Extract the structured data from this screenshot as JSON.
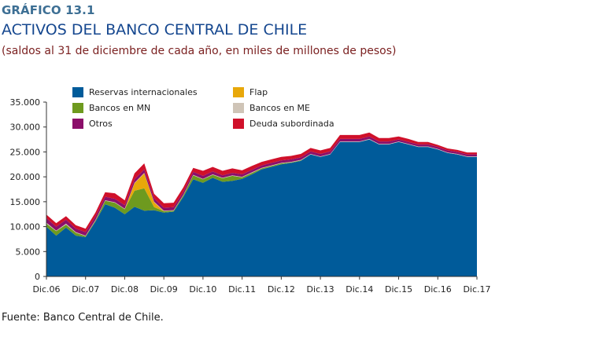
{
  "header": {
    "tag": "GRÁFICO 13.1",
    "title": "ACTIVOS DEL BANCO CENTRAL DE CHILE",
    "subtitle": "(saldos al 31 de diciembre de cada año, en miles de millones de pesos)"
  },
  "source": "Fuente: Banco Central de Chile.",
  "chart_data": {
    "type": "area",
    "stacked": true,
    "title": "ACTIVOS DEL BANCO CENTRAL DE CHILE",
    "xlabel": "",
    "ylabel": "",
    "ylim": [
      0,
      35000
    ],
    "yticks": [
      0,
      5000,
      10000,
      15000,
      20000,
      25000,
      30000,
      35000
    ],
    "ytick_labels": [
      "0",
      "5.000",
      "10.000",
      "15.000",
      "20.000",
      "25.000",
      "30.000",
      "35.000"
    ],
    "xtick_labels": [
      "Dic.06",
      "Dic.07",
      "Dic.08",
      "Dic.09",
      "Dic.10",
      "Dic.11",
      "Dic.12",
      "Dic.13",
      "Dic.14",
      "Dic.15",
      "Dic.16",
      "Dic.17"
    ],
    "x": [
      2006.0,
      2006.25,
      2006.5,
      2006.75,
      2007.0,
      2007.25,
      2007.5,
      2007.75,
      2008.0,
      2008.25,
      2008.5,
      2008.75,
      2009.0,
      2009.25,
      2009.5,
      2009.75,
      2010.0,
      2010.25,
      2010.5,
      2010.75,
      2011.0,
      2011.25,
      2011.5,
      2011.75,
      2012.0,
      2012.25,
      2012.5,
      2012.75,
      2013.0,
      2013.25,
      2013.5,
      2013.75,
      2014.0,
      2014.25,
      2014.5,
      2014.75,
      2015.0,
      2015.25,
      2015.5,
      2015.75,
      2016.0,
      2016.25,
      2016.5,
      2016.75,
      2017.0
    ],
    "legend_position": "top",
    "grid": false,
    "series": [
      {
        "name": "Reservas internacionales",
        "color": "#005b9a",
        "values": [
          10000,
          8200,
          9800,
          8200,
          7900,
          11000,
          14500,
          13800,
          12500,
          14000,
          13200,
          13300,
          12800,
          13000,
          16000,
          19500,
          18800,
          19800,
          19000,
          19200,
          19600,
          20500,
          21500,
          22000,
          22500,
          22800,
          23200,
          24500,
          24000,
          24500,
          27000,
          27000,
          27000,
          27500,
          26500,
          26500,
          27000,
          26500,
          26000,
          26000,
          25500,
          24800,
          24500,
          24000,
          24000
        ]
      },
      {
        "name": "Bancos en MN",
        "color": "#6e9a1f",
        "values": [
          600,
          900,
          600,
          600,
          200,
          200,
          700,
          1000,
          1000,
          3200,
          4500,
          600,
          300,
          200,
          300,
          800,
          700,
          600,
          700,
          1000,
          300,
          300,
          200,
          200,
          200,
          100,
          100,
          0,
          0,
          0,
          0,
          0,
          0,
          0,
          0,
          0,
          0,
          0,
          0,
          0,
          0,
          0,
          0,
          0,
          0
        ]
      },
      {
        "name": "Flap",
        "color": "#e8a80a",
        "values": [
          0,
          0,
          0,
          0,
          0,
          0,
          0,
          0,
          0,
          1500,
          3000,
          1000,
          0,
          0,
          0,
          0,
          0,
          0,
          0,
          0,
          0,
          0,
          0,
          0,
          0,
          0,
          0,
          0,
          0,
          0,
          0,
          0,
          0,
          0,
          0,
          0,
          0,
          0,
          0,
          0,
          0,
          0,
          0,
          0,
          0
        ]
      },
      {
        "name": "Bancos en ME",
        "color": "#cfc4b7",
        "values": [
          200,
          100,
          200,
          100,
          100,
          100,
          100,
          100,
          100,
          100,
          100,
          100,
          100,
          100,
          100,
          100,
          100,
          100,
          100,
          100,
          100,
          100,
          100,
          100,
          100,
          100,
          100,
          100,
          100,
          100,
          100,
          100,
          100,
          100,
          100,
          100,
          100,
          100,
          100,
          100,
          100,
          100,
          100,
          100,
          100
        ]
      },
      {
        "name": "Otros",
        "color": "#8b0f6a",
        "values": [
          900,
          800,
          800,
          700,
          700,
          700,
          700,
          700,
          700,
          700,
          700,
          700,
          600,
          600,
          600,
          600,
          600,
          600,
          500,
          500,
          500,
          500,
          500,
          500,
          500,
          500,
          500,
          500,
          500,
          500,
          500,
          500,
          500,
          500,
          500,
          500,
          400,
          400,
          400,
          400,
          400,
          400,
          400,
          400,
          400
        ]
      },
      {
        "name": "Deuda subordinada",
        "color": "#d0102a",
        "values": [
          700,
          700,
          700,
          700,
          700,
          800,
          900,
          1100,
          1000,
          1200,
          1200,
          900,
          900,
          900,
          900,
          800,
          1000,
          900,
          900,
          900,
          800,
          800,
          700,
          700,
          700,
          700,
          700,
          700,
          700,
          700,
          800,
          800,
          800,
          800,
          700,
          700,
          600,
          600,
          500,
          500,
          400,
          400,
          400,
          400,
          400
        ]
      }
    ],
    "legend_layout": [
      [
        "Reservas internacionales",
        "Flap"
      ],
      [
        "Bancos en MN",
        "Bancos en ME"
      ],
      [
        "Otros",
        "Deuda subordinada"
      ]
    ]
  }
}
